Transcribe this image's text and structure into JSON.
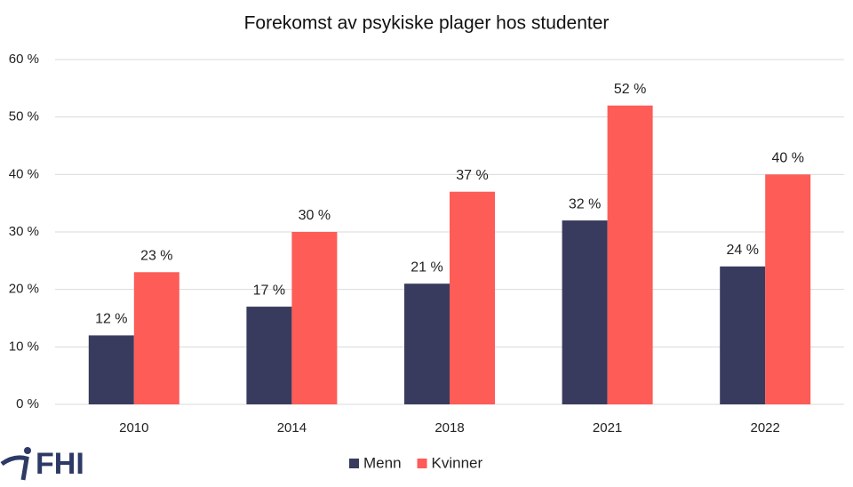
{
  "chart_data": {
    "type": "bar",
    "title": "Forekomst av psykiske plager hos studenter",
    "categories": [
      "2010",
      "2014",
      "2018",
      "2021",
      "2022"
    ],
    "series": [
      {
        "name": "Menn",
        "color": "#393b5e",
        "values": [
          12,
          17,
          21,
          32,
          24
        ],
        "value_labels": [
          "12 %",
          "17 %",
          "21 %",
          "32 %",
          "24 %"
        ]
      },
      {
        "name": "Kvinner",
        "color": "#fd5c57",
        "values": [
          23,
          30,
          37,
          52,
          40
        ],
        "value_labels": [
          "23 %",
          "30 %",
          "37 %",
          "52 %",
          "40 %"
        ]
      }
    ],
    "ylim": [
      0,
      60
    ],
    "yticks": [
      {
        "value": 0,
        "label": "0 %"
      },
      {
        "value": 10,
        "label": "10 %"
      },
      {
        "value": 20,
        "label": "20 %"
      },
      {
        "value": 30,
        "label": "30 %"
      },
      {
        "value": 40,
        "label": "40 %"
      },
      {
        "value": 50,
        "label": "50 %"
      },
      {
        "value": 60,
        "label": "60 %"
      }
    ],
    "grid": true,
    "legend": "bottom"
  },
  "logo": "FHI"
}
